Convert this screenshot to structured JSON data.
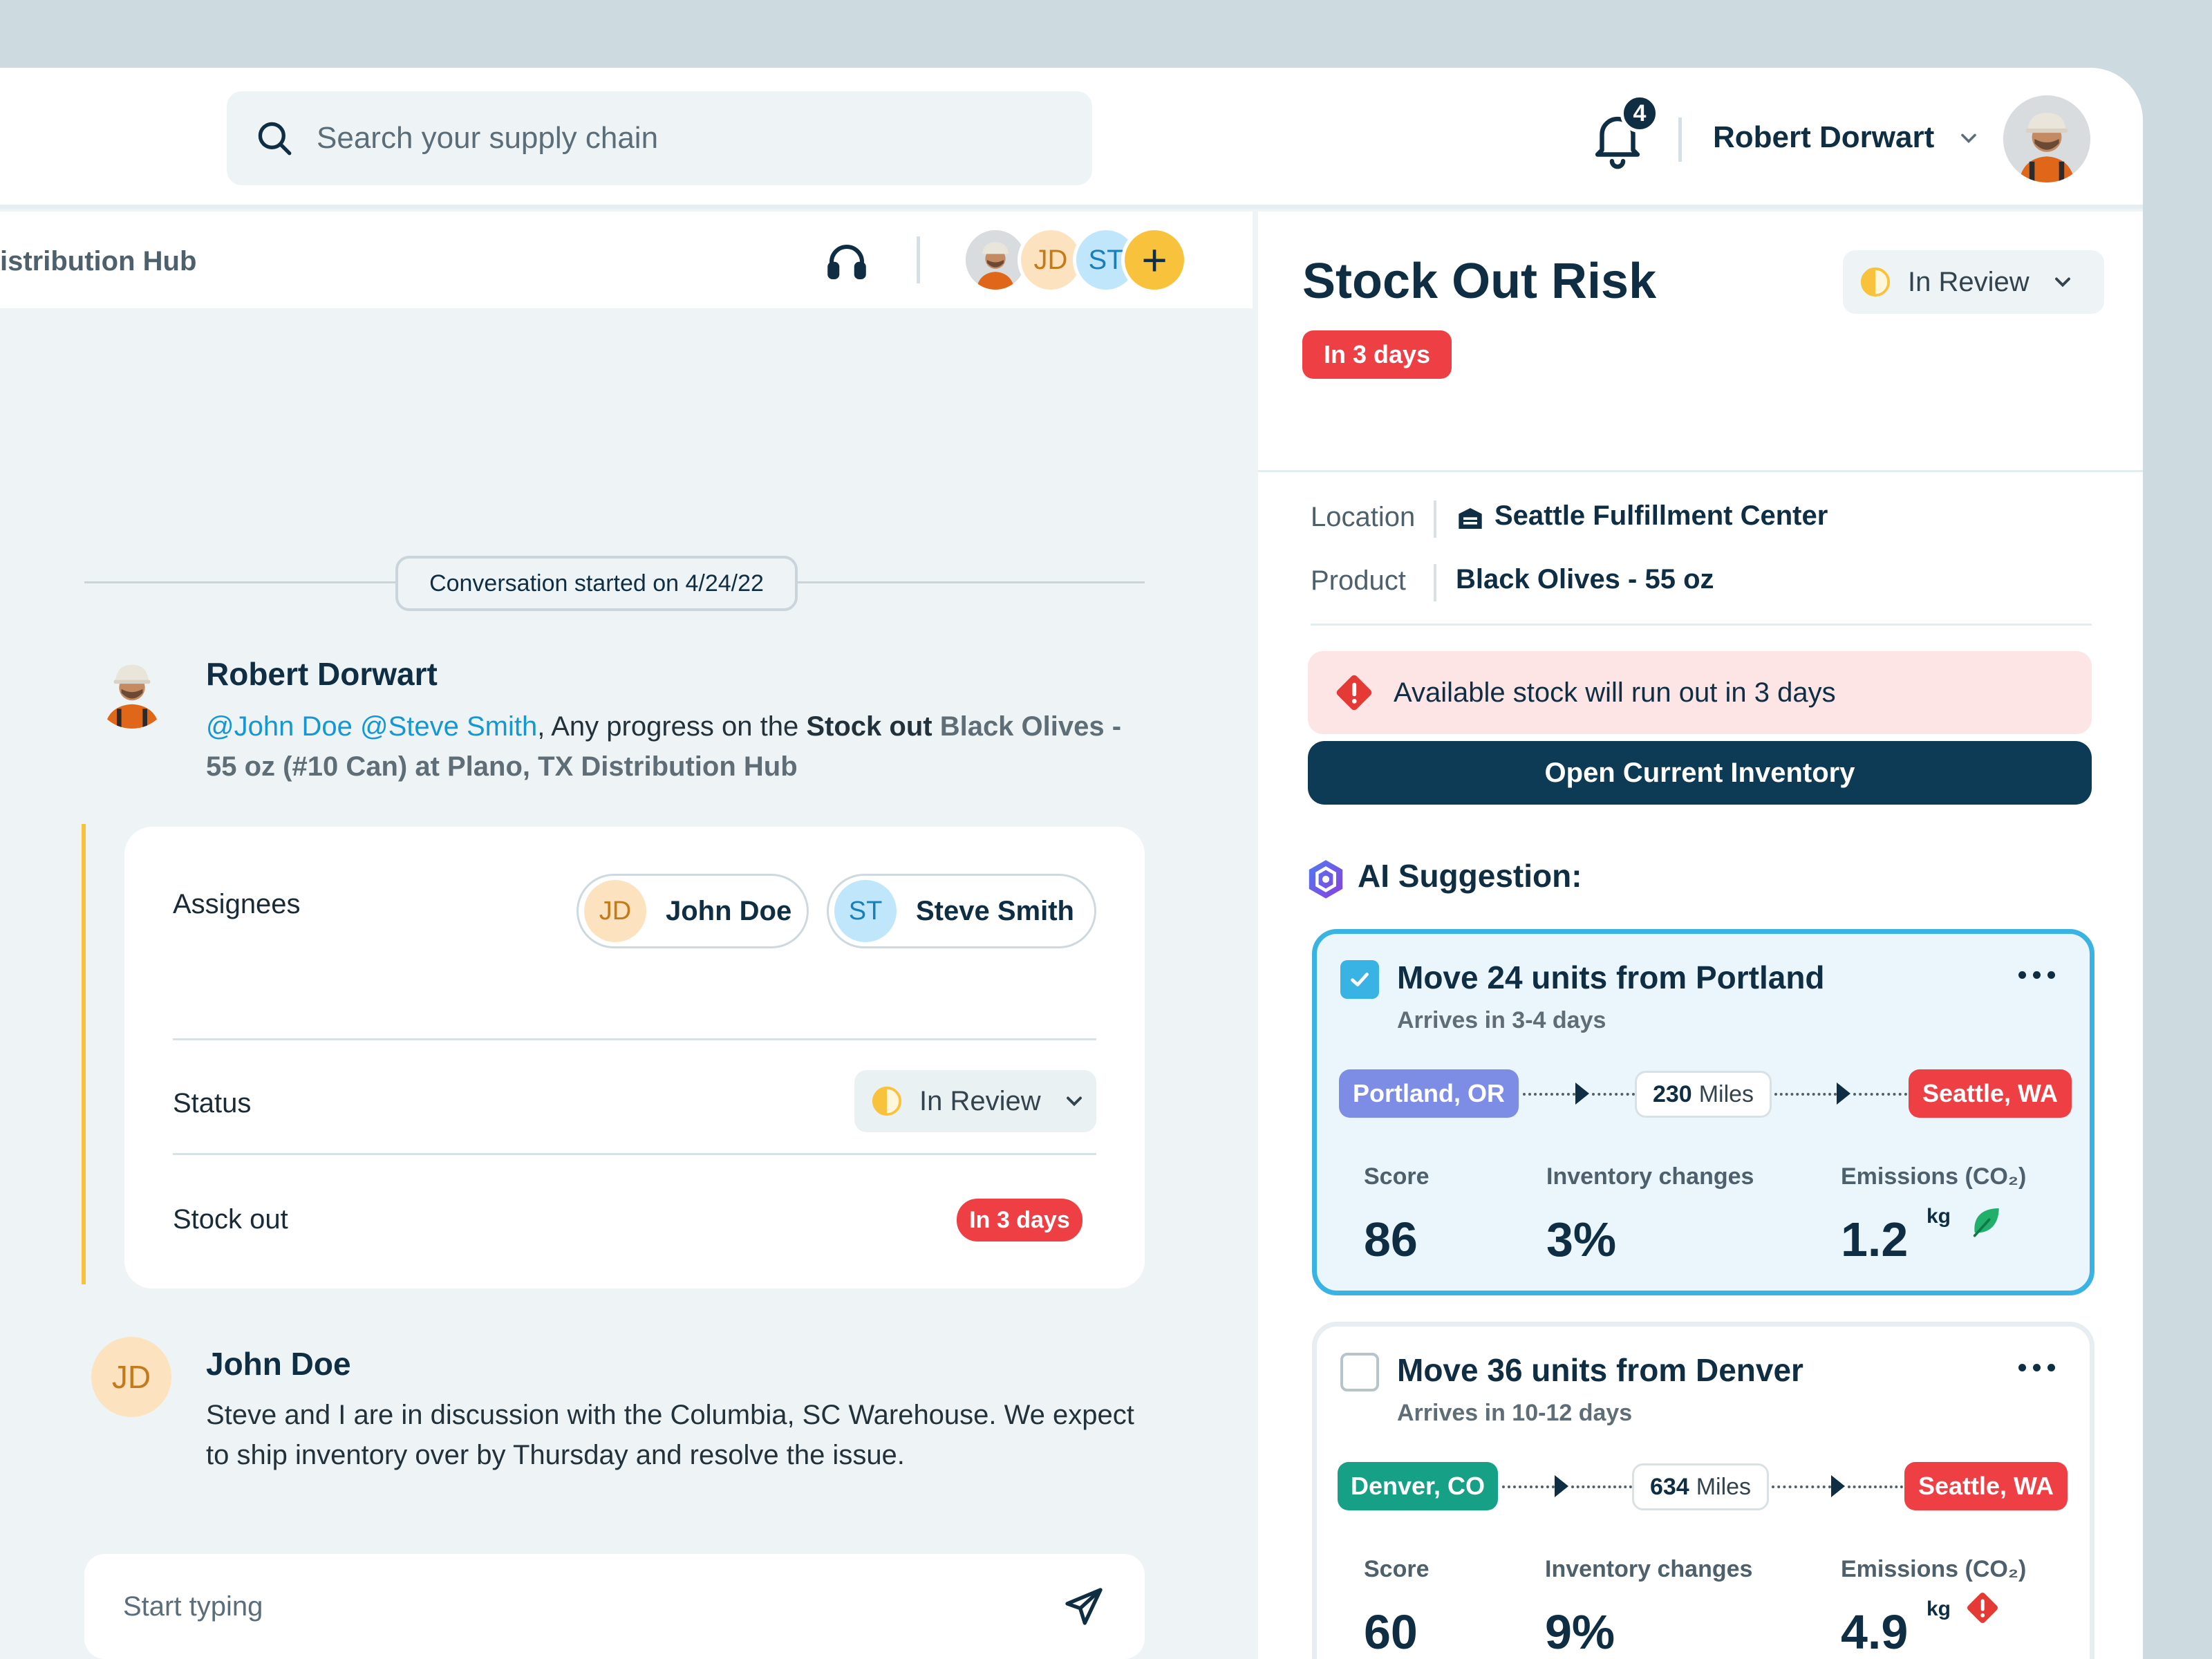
{
  "topbar": {
    "search_placeholder": "Search your supply chain",
    "notifications_count": "4",
    "user_name": "Robert Dorwart"
  },
  "chat": {
    "title": "istribution Hub",
    "participants": [
      {
        "initials": "JD",
        "bg": "#fde2bf",
        "fg": "#c47a18"
      },
      {
        "initials": "ST",
        "bg": "#bfe6fb",
        "fg": "#1a7fb8"
      }
    ],
    "add_symbol": "+",
    "conversation_started": "Conversation started on 4/24/22",
    "messages": [
      {
        "author": "Robert Dorwart",
        "mention1": "@John Doe",
        "mention2": "@Steve Smith",
        "text1": ", Any progress on the ",
        "bold": "Stock out",
        "item_line1": " Black Olives -",
        "item_line2": "55 oz (#10 Can) at Plano, TX Distribution Hub"
      },
      {
        "author": "John Doe",
        "initials": "JD",
        "line1": "Steve and I are in discussion with the Columbia, SC Warehouse. We expect",
        "line2": "to ship inventory over by Thursday and resolve the issue."
      }
    ],
    "card": {
      "assignees_label": "Assignees",
      "assignees": [
        {
          "initials": "JD",
          "name": "John Doe"
        },
        {
          "initials": "ST",
          "name": "Steve Smith"
        }
      ],
      "status_label": "Status",
      "status_value": "In Review",
      "stockout_label": "Stock out",
      "stockout_value": "In 3 days"
    },
    "composer_placeholder": "Start typing"
  },
  "risk": {
    "title": "Stock Out Risk",
    "badge": "In 3 days",
    "status": "In Review",
    "location_label": "Location",
    "location_value": "Seattle Fulfillment Center",
    "product_label": "Product",
    "product_value": "Black Olives - 55 oz",
    "alert_text": "Available stock will run out in 3 days",
    "open_button": "Open Current Inventory",
    "ai_label": "AI Suggestion:",
    "suggestions": [
      {
        "title": "Move 24 units from Portland",
        "subtitle": "Arrives in 3-4 days",
        "checked": true,
        "from": "Portland, OR",
        "from_color": "#7d8de6",
        "distance_value": "230",
        "distance_unit": "Miles",
        "to": "Seattle, WA",
        "score_label": "Score",
        "score": "86",
        "inv_label": "Inventory changes",
        "inv": "3%",
        "emis_label": "Emissions (CO₂)",
        "emis": "1.2",
        "emis_unit": "kg",
        "emis_icon": "leaf-icon"
      },
      {
        "title": "Move 36 units from Denver",
        "subtitle": "Arrives in 10-12 days",
        "checked": false,
        "from": "Denver, CO",
        "from_color": "#16a085",
        "distance_value": "634",
        "distance_unit": "Miles",
        "to": "Seattle, WA",
        "score_label": "Score",
        "score": "60",
        "inv_label": "Inventory changes",
        "inv": "9%",
        "emis_label": "Emissions (CO₂)",
        "emis": "4.9",
        "emis_unit": "kg",
        "emis_icon": "warning-icon"
      }
    ]
  },
  "colors": {
    "navy": "#0f2e43",
    "red": "#ee3f45",
    "accent_blue": "#39b2e4",
    "yellow": "#f9c23c"
  }
}
